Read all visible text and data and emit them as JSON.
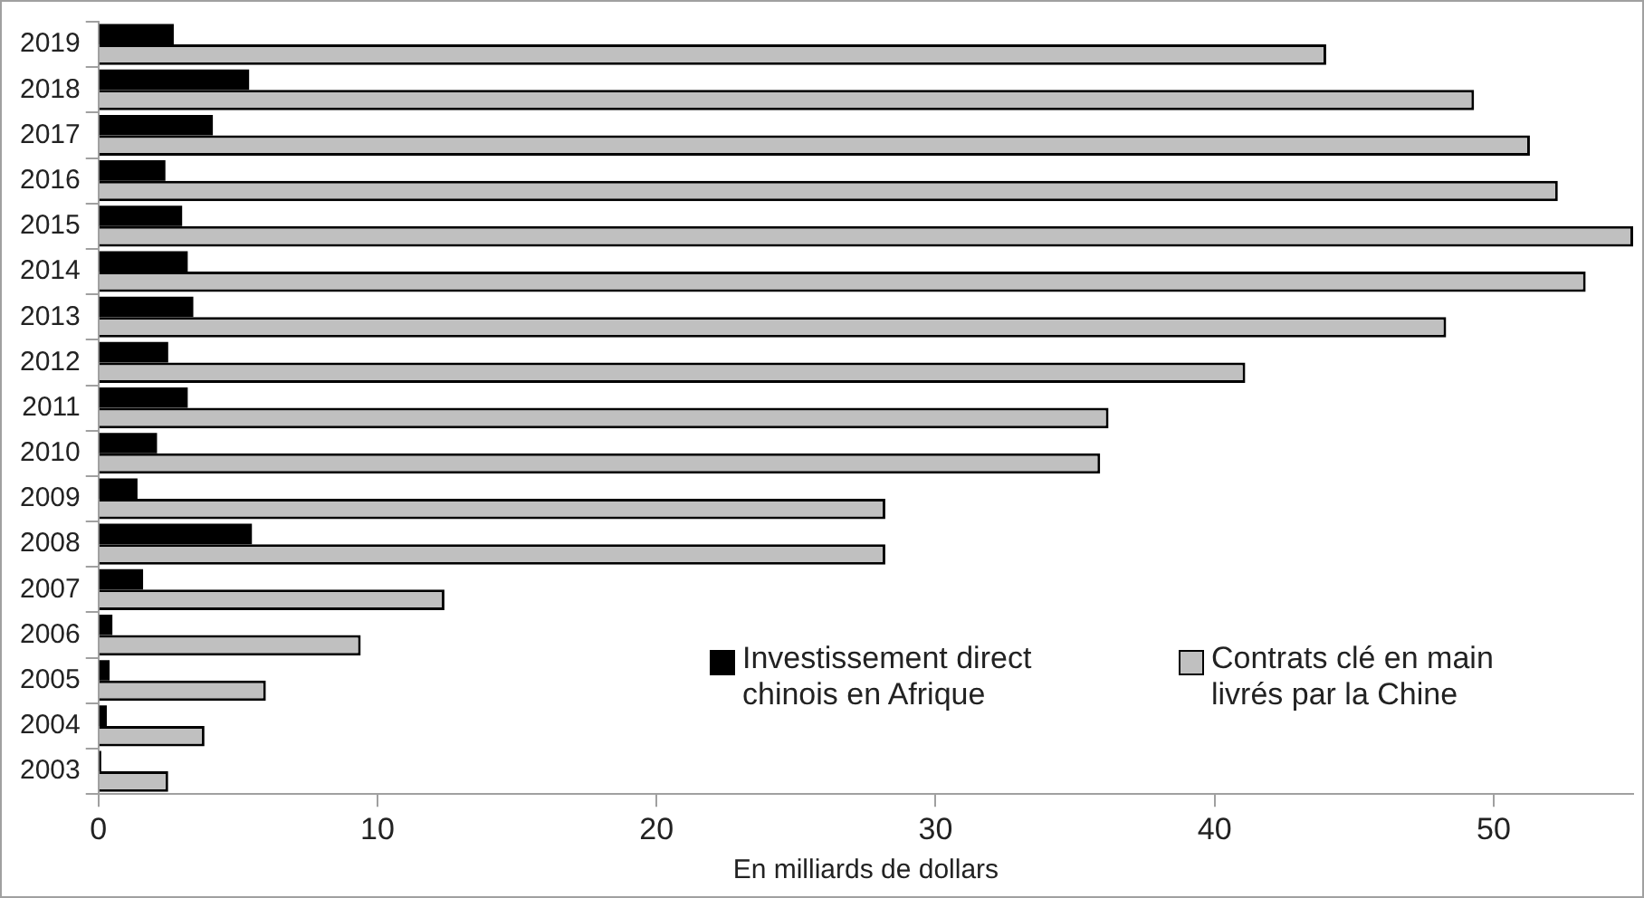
{
  "chart_data": {
    "type": "bar",
    "orientation": "horizontal",
    "xlabel": "En milliards de dollars",
    "categories": [
      "2019",
      "2018",
      "2017",
      "2016",
      "2015",
      "2014",
      "2013",
      "2012",
      "2011",
      "2010",
      "2009",
      "2008",
      "2007",
      "2006",
      "2005",
      "2004",
      "2003"
    ],
    "series": [
      {
        "name": "Investissement direct chinois en Afrique",
        "color": "#000000",
        "values": [
          2.7,
          5.4,
          4.1,
          2.4,
          3.0,
          3.2,
          3.4,
          2.5,
          3.2,
          2.1,
          1.4,
          5.5,
          1.6,
          0.5,
          0.4,
          0.3,
          0.1
        ]
      },
      {
        "name": "Contrats clé en main livrés par la Chine",
        "color": "#c0c0c0",
        "values": [
          44.0,
          49.3,
          51.3,
          52.3,
          55.0,
          53.3,
          48.3,
          41.1,
          36.2,
          35.9,
          28.2,
          28.2,
          12.4,
          9.4,
          6.0,
          3.8,
          2.5
        ]
      }
    ],
    "xlim": [
      0,
      55
    ],
    "xticks": [
      0,
      10,
      20,
      30,
      40,
      50
    ],
    "grid": false,
    "legend": "bottom right"
  }
}
